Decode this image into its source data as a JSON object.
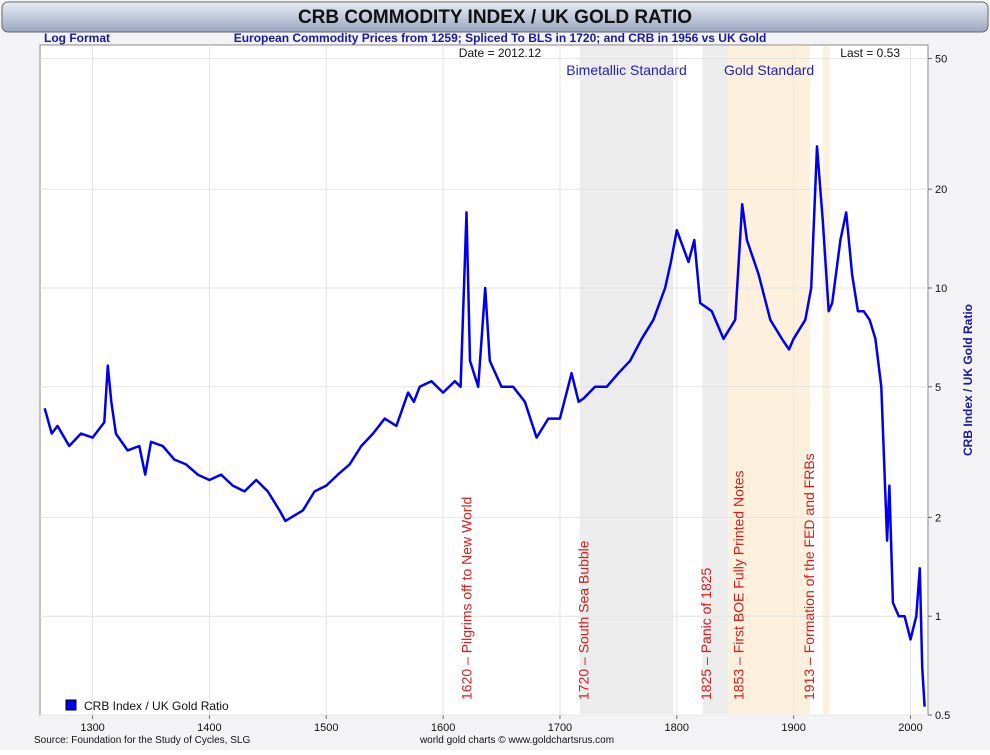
{
  "chart_data": {
    "type": "line",
    "title": "CRB COMMODITY INDEX / UK GOLD RATIO",
    "subtitle": "European Commodity Prices from 1259; Spliced To BLS in 1720; and CRB in 1956 vs UK Gold",
    "format_label": "Log Format",
    "date_label": "Date = 2012.12",
    "last_label": "Last = 0.53",
    "y_axis_label": "CRB Index / UK Gold Ratio",
    "source": "Source: Foundation for the Study of Cycles, SLG",
    "credit": "world gold charts © www.goldchartsrus.com",
    "log_scale": true,
    "grid": true,
    "legend": "lower left",
    "xlim": [
      1255,
      2015
    ],
    "xticks": [
      1300,
      1400,
      1500,
      1600,
      1700,
      1800,
      1900,
      2000
    ],
    "ylim": [
      0.5,
      55
    ],
    "yticks": [
      0.5,
      1,
      2,
      5,
      10,
      20,
      50
    ],
    "bands": [
      {
        "start": 1717,
        "end": 1797,
        "color": "#ececec",
        "label": "Bimetallic Standard"
      },
      {
        "start": 1822,
        "end": 1844,
        "color": "#ececec"
      },
      {
        "start": 1844,
        "end": 1914,
        "color": "#fdf0dc",
        "label": "Gold Standard"
      },
      {
        "start": 1925,
        "end": 1931,
        "color": "#fdf0dc"
      }
    ],
    "annotations": [
      {
        "x": 1620,
        "text": "1620 – Pilgrims off to New World"
      },
      {
        "x": 1720,
        "text": "1720 – South Sea Bubble"
      },
      {
        "x": 1825,
        "text": "1825 – Panic of 1825"
      },
      {
        "x": 1853,
        "text": "1853 – First BOE Fully Printed Notes"
      },
      {
        "x": 1913,
        "text": "1913 – Formation of the FED and FRBs"
      }
    ],
    "x": [
      1259,
      1265,
      1270,
      1280,
      1290,
      1300,
      1310,
      1313,
      1316,
      1320,
      1330,
      1340,
      1345,
      1350,
      1360,
      1370,
      1380,
      1390,
      1400,
      1410,
      1420,
      1430,
      1440,
      1450,
      1460,
      1465,
      1470,
      1480,
      1490,
      1500,
      1510,
      1520,
      1530,
      1540,
      1550,
      1560,
      1570,
      1575,
      1580,
      1590,
      1600,
      1610,
      1615,
      1620,
      1623,
      1630,
      1636,
      1640,
      1650,
      1660,
      1670,
      1680,
      1690,
      1700,
      1710,
      1716,
      1720,
      1730,
      1740,
      1750,
      1760,
      1770,
      1780,
      1790,
      1795,
      1800,
      1810,
      1815,
      1820,
      1830,
      1840,
      1850,
      1856,
      1860,
      1870,
      1880,
      1890,
      1896,
      1900,
      1910,
      1915,
      1920,
      1925,
      1930,
      1933,
      1940,
      1945,
      1950,
      1955,
      1960,
      1965,
      1970,
      1975,
      1980,
      1982,
      1985,
      1990,
      1995,
      2000,
      2005,
      2008,
      2010,
      2012.12
    ],
    "series": [
      {
        "name": "CRB Index / UK Gold Ratio",
        "color": "#0000ee",
        "values": [
          4.3,
          3.6,
          3.8,
          3.3,
          3.6,
          3.5,
          3.9,
          5.8,
          4.5,
          3.6,
          3.2,
          3.3,
          2.7,
          3.4,
          3.3,
          3.0,
          2.9,
          2.7,
          2.6,
          2.7,
          2.5,
          2.4,
          2.6,
          2.4,
          2.1,
          1.95,
          2.0,
          2.1,
          2.4,
          2.5,
          2.7,
          2.9,
          3.3,
          3.6,
          4.0,
          3.8,
          4.8,
          4.5,
          5.0,
          5.2,
          4.8,
          5.2,
          5.0,
          17,
          6,
          5,
          10,
          6,
          5,
          5,
          4.5,
          3.5,
          4.0,
          4.0,
          5.5,
          4.5,
          4.6,
          5,
          5,
          5.5,
          6,
          7,
          8,
          10,
          12,
          15,
          12,
          14,
          9,
          8.5,
          7,
          8,
          18,
          14,
          11,
          8,
          7,
          6.5,
          7,
          8,
          10,
          27,
          16,
          8.5,
          9,
          14,
          17,
          11,
          8.5,
          8.5,
          8,
          7,
          5,
          1.7,
          2.5,
          1.1,
          1.0,
          1.0,
          0.85,
          1.0,
          1.4,
          0.7,
          0.53
        ]
      }
    ]
  }
}
